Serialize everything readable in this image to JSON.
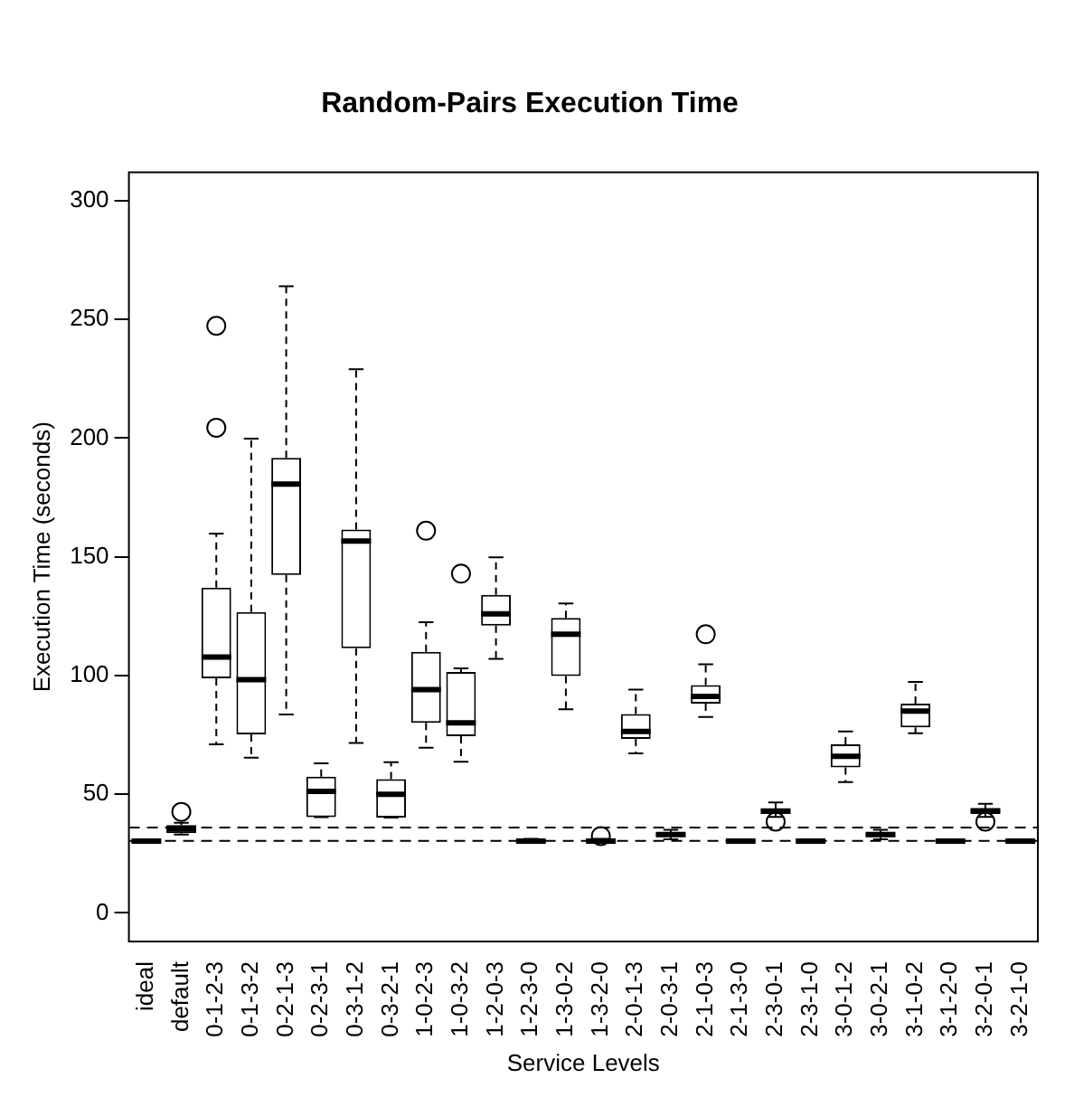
{
  "chart_data": {
    "type": "box",
    "title": "Random-Pairs Execution Time",
    "xlabel": "Service Levels",
    "ylabel": "Execution Time (seconds)",
    "categories": [
      "ideal",
      "default",
      "0-1-2-3",
      "0-1-3-2",
      "0-2-1-3",
      "0-2-3-1",
      "0-3-1-2",
      "0-3-2-1",
      "1-0-2-3",
      "1-0-3-2",
      "1-2-0-3",
      "1-2-3-0",
      "1-3-0-2",
      "1-3-2-0",
      "2-0-1-3",
      "2-0-3-1",
      "2-1-0-3",
      "2-1-3-0",
      "2-3-0-1",
      "2-3-1-0",
      "3-0-1-2",
      "3-0-2-1",
      "3-1-0-2",
      "3-1-2-0",
      "3-2-0-1",
      "3-2-1-0"
    ],
    "boxes": [
      {
        "low": 29.5,
        "q1": 30,
        "median": 30.3,
        "q3": 30.6,
        "high": 31
      },
      {
        "low": 33,
        "q1": 33.6,
        "median": 35.3,
        "q3": 37,
        "high": 38,
        "outliers": [
          42.6
        ]
      },
      {
        "low": 71,
        "q1": 98.8,
        "median": 107.8,
        "q3": 137,
        "high": 159.8,
        "outliers": [
          204.4,
          247.3
        ]
      },
      {
        "low": 65.4,
        "q1": 75.2,
        "median": 98.3,
        "q3": 126.7,
        "high": 199.8
      },
      {
        "low": 83.6,
        "q1": 142.4,
        "median": 180.6,
        "q3": 191.7,
        "high": 264
      },
      {
        "low": 40.4,
        "q1": 40.4,
        "median": 51.2,
        "q3": 57.4,
        "high": 63
      },
      {
        "low": 71.6,
        "q1": 111.5,
        "median": 156.6,
        "q3": 161.5,
        "high": 229
      },
      {
        "low": 40.2,
        "q1": 40.2,
        "median": 50,
        "q3": 56.4,
        "high": 63.5
      },
      {
        "low": 69.6,
        "q1": 80.1,
        "median": 94.1,
        "q3": 110,
        "high": 122.5,
        "outliers": [
          161
        ]
      },
      {
        "low": 63.7,
        "q1": 74.5,
        "median": 80.1,
        "q3": 101.5,
        "high": 103,
        "outliers": [
          142.9
        ]
      },
      {
        "low": 107,
        "q1": 121,
        "median": 126,
        "q3": 134,
        "high": 149.8
      },
      {
        "low": 29.5,
        "q1": 30,
        "median": 30.3,
        "q3": 30.8,
        "high": 31.2
      },
      {
        "low": 85.8,
        "q1": 99.8,
        "median": 117.4,
        "q3": 124.3,
        "high": 130.4
      },
      {
        "low": 29.5,
        "q1": 30,
        "median": 30.3,
        "q3": 30.8,
        "high": 31.2,
        "outliers": [
          32.4
        ]
      },
      {
        "low": 67.2,
        "q1": 73.3,
        "median": 76.5,
        "q3": 83.8,
        "high": 94.1
      },
      {
        "low": 31,
        "q1": 32,
        "median": 33,
        "q3": 34,
        "high": 35
      },
      {
        "low": 82.6,
        "q1": 88.2,
        "median": 91.2,
        "q3": 96,
        "high": 104.7,
        "outliers": [
          117.4
        ]
      },
      {
        "low": 29.5,
        "q1": 30,
        "median": 30.3,
        "q3": 30.6,
        "high": 31
      },
      {
        "low": 40.5,
        "q1": 41.7,
        "median": 42.9,
        "q3": 44,
        "high": 46.6,
        "outliers": [
          38.5
        ]
      },
      {
        "low": 29.5,
        "q1": 30,
        "median": 30.3,
        "q3": 30.6,
        "high": 31
      },
      {
        "low": 55.1,
        "q1": 61.3,
        "median": 66,
        "q3": 71,
        "high": 76.5
      },
      {
        "low": 31,
        "q1": 32,
        "median": 33,
        "q3": 34,
        "high": 35
      },
      {
        "low": 75.7,
        "q1": 78.2,
        "median": 85,
        "q3": 88.2,
        "high": 97.3
      },
      {
        "low": 29.5,
        "q1": 30,
        "median": 30.3,
        "q3": 30.6,
        "high": 31
      },
      {
        "low": 40.5,
        "q1": 41.7,
        "median": 43,
        "q3": 44,
        "high": 46,
        "outliers": [
          38.5
        ]
      },
      {
        "low": 29.5,
        "q1": 30,
        "median": 30.3,
        "q3": 30.6,
        "high": 31
      }
    ],
    "ylim": [
      -12,
      312
    ],
    "yticks": [
      0,
      50,
      100,
      150,
      200,
      250,
      300
    ],
    "grid": false,
    "ref_lines": [
      {
        "axis": "y",
        "value": 36,
        "line_style": "dashed"
      },
      {
        "axis": "y",
        "value": 30.4,
        "line_style": "dashed"
      }
    ]
  }
}
